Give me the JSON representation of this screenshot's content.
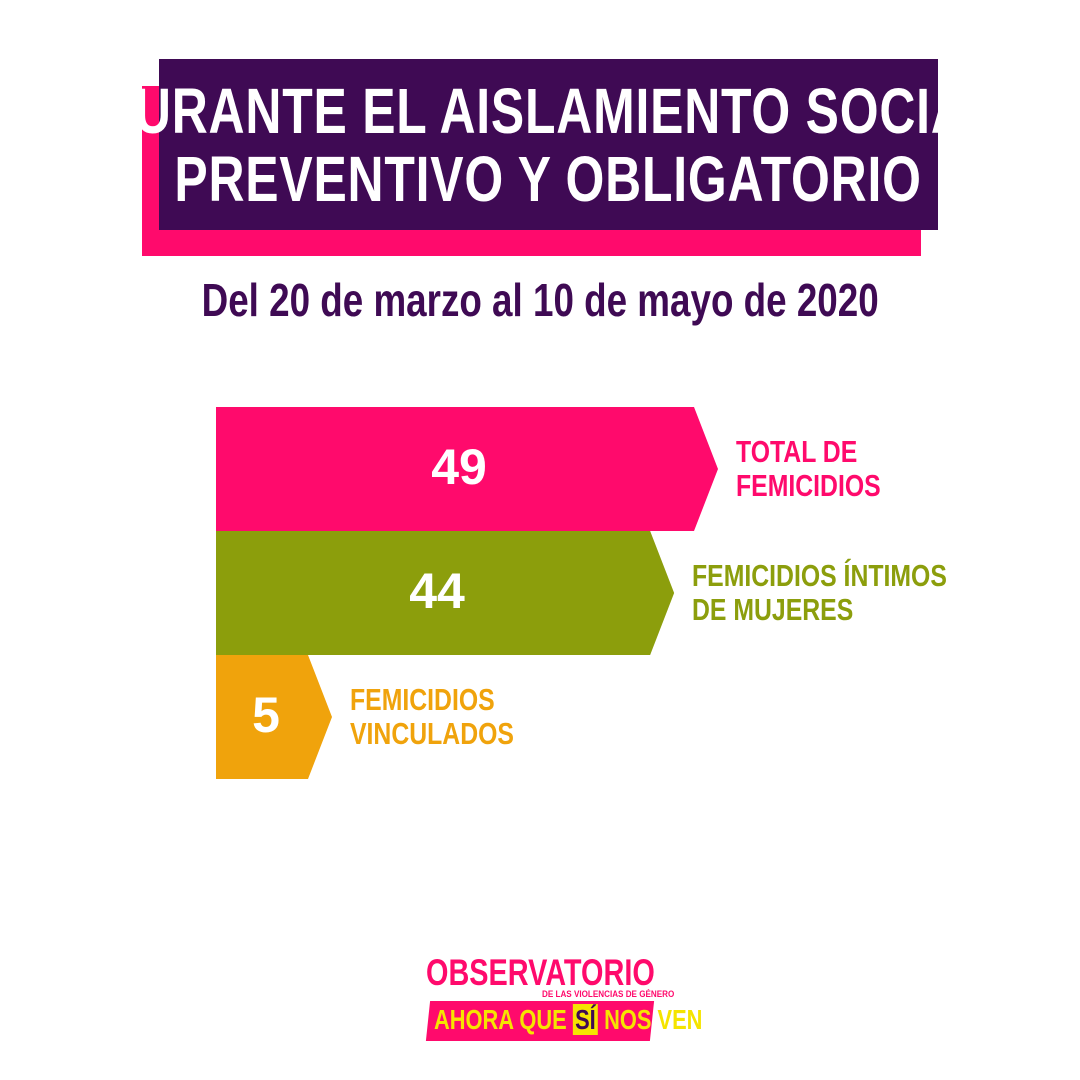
{
  "header": {
    "title_line1": "DURANTE EL AISLAMIENTO SOCIAL",
    "title_line2": "PREVENTIVO Y OBLIGATORIO",
    "subtitle": "Del 20 de marzo al 10 de mayo de 2020"
  },
  "chart_data": {
    "type": "bar",
    "orientation": "horizontal",
    "categories": [
      "TOTAL DE FEMICIDIOS",
      "FEMICIDIOS ÍNTIMOS DE MUJERES",
      "FEMICIDIOS VINCULADOS"
    ],
    "category_lines": [
      [
        "TOTAL DE",
        "FEMICIDIOS"
      ],
      [
        "FEMICIDIOS ÍNTIMOS",
        "DE MUJERES"
      ],
      [
        "FEMICIDIOS",
        "VINCULADOS"
      ]
    ],
    "values": [
      49,
      44,
      5
    ],
    "colors": [
      "#ff0a6c",
      "#8c9e0c",
      "#f0a30c"
    ]
  },
  "logo": {
    "top": "OBSERVATORIO",
    "small": "DE LAS VIOLENCIAS DE GÉNERO",
    "bottom_a": "AHORA QUE",
    "bottom_si": "SÍ",
    "bottom_b": "NOS VEN"
  },
  "colors": {
    "primary_purple": "#3f0a54",
    "accent_pink": "#ff0a6c"
  }
}
